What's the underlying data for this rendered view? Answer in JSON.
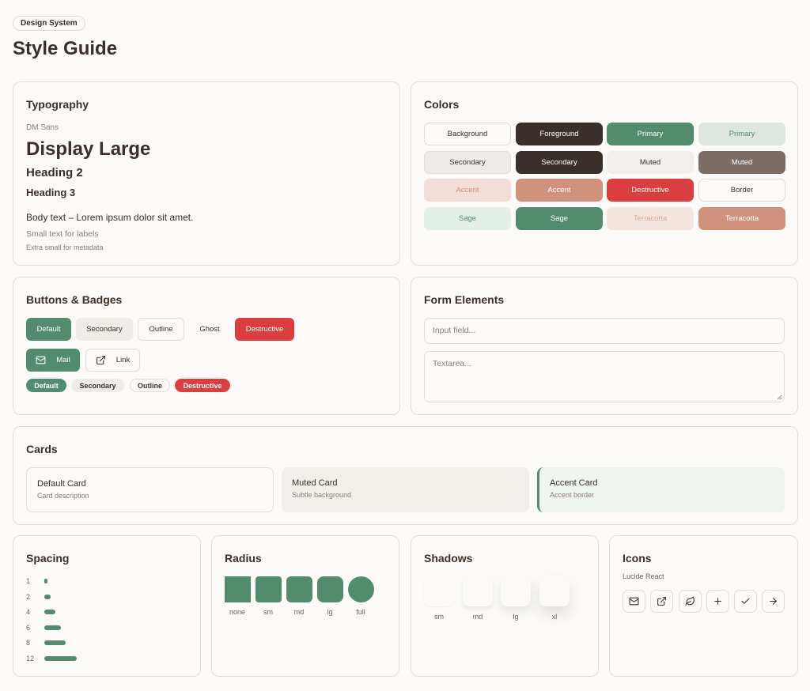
{
  "header": {
    "pill": "Design System",
    "title": "Style Guide"
  },
  "typography": {
    "title": "Typography",
    "font_name": "DM Sans",
    "display": "Display Large",
    "h2": "Heading 2",
    "h3": "Heading 3",
    "body": "Body text – Lorem ipsum dolor sit amet.",
    "small": "Small text for labels",
    "xs": "Extra small for metadata"
  },
  "colors": {
    "title": "Colors",
    "swatches": [
      {
        "label": "Background",
        "bg": "#fbfaf8",
        "fg": "#3a2f29",
        "border": "#e3ddd6"
      },
      {
        "label": "Foreground",
        "bg": "#3a302b",
        "fg": "#ffffff",
        "border": ""
      },
      {
        "label": "Primary",
        "bg": "#528b6e",
        "fg": "#ffffff",
        "border": ""
      },
      {
        "label": "Primary",
        "bg": "#dde6e0",
        "fg": "#528b6e",
        "border": ""
      },
      {
        "label": "Secondary",
        "bg": "#efebe6",
        "fg": "#3a2f29",
        "border": "#e3ddd6"
      },
      {
        "label": "Secondary",
        "bg": "#3a302b",
        "fg": "#ffffff",
        "border": ""
      },
      {
        "label": "Muted",
        "bg": "#f1efea",
        "fg": "#3a2f29",
        "border": ""
      },
      {
        "label": "Muted",
        "bg": "#7d6d64",
        "fg": "#ffffff",
        "border": ""
      },
      {
        "label": "Accent",
        "bg": "#f3ddd7",
        "fg": "#d0907c",
        "border": ""
      },
      {
        "label": "Accent",
        "bg": "#d0927c",
        "fg": "#ffffff",
        "border": ""
      },
      {
        "label": "Destructive",
        "bg": "#db3e3e",
        "fg": "#ffffff",
        "border": ""
      },
      {
        "label": "Border",
        "bg": "#fbfaf8",
        "fg": "#3a2f29",
        "border": "#e3ddd6"
      },
      {
        "label": "Sage",
        "bg": "#e2f0e8",
        "fg": "#528b6e",
        "border": ""
      },
      {
        "label": "Sage",
        "bg": "#528b6e",
        "fg": "#ffffff",
        "border": ""
      },
      {
        "label": "Terracotta",
        "bg": "#f5e5df",
        "fg": "#d8a593",
        "border": ""
      },
      {
        "label": "Terracotta",
        "bg": "#d0927c",
        "fg": "#ffffff",
        "border": ""
      }
    ]
  },
  "buttons": {
    "title": "Buttons & Badges",
    "default": "Default",
    "secondary": "Secondary",
    "outline": "Outline",
    "ghost": "Ghost",
    "destructive": "Destructive",
    "mail": "Mail",
    "link": "Link",
    "badges": [
      "Default",
      "Secondary",
      "Outline",
      "Destructive"
    ]
  },
  "form": {
    "title": "Form Elements",
    "input_placeholder": "Input field...",
    "textarea_placeholder": "Textarea..."
  },
  "cards": {
    "title": "Cards",
    "items": [
      {
        "title": "Default Card",
        "desc": "Card description"
      },
      {
        "title": "Muted Card",
        "desc": "Subtle background"
      },
      {
        "title": "Accent Card",
        "desc": "Accent border"
      }
    ]
  },
  "spacing": {
    "title": "Spacing",
    "rows": [
      {
        "label": "1",
        "value": 1
      },
      {
        "label": "2",
        "value": 2
      },
      {
        "label": "4",
        "value": 4
      },
      {
        "label": "6",
        "value": 6
      },
      {
        "label": "8",
        "value": 8
      },
      {
        "label": "12",
        "value": 12
      }
    ]
  },
  "radius": {
    "title": "Radius",
    "labels": [
      "none",
      "sm",
      "md",
      "lg",
      "full"
    ]
  },
  "shadows": {
    "title": "Shadows",
    "labels": [
      "sm",
      "md",
      "lg",
      "xl"
    ]
  },
  "icons": {
    "title": "Icons",
    "library": "Lucide React",
    "names": [
      "mail-icon",
      "external-link-icon",
      "leaf-icon",
      "plus-icon",
      "check-icon",
      "arrow-right-icon"
    ]
  }
}
